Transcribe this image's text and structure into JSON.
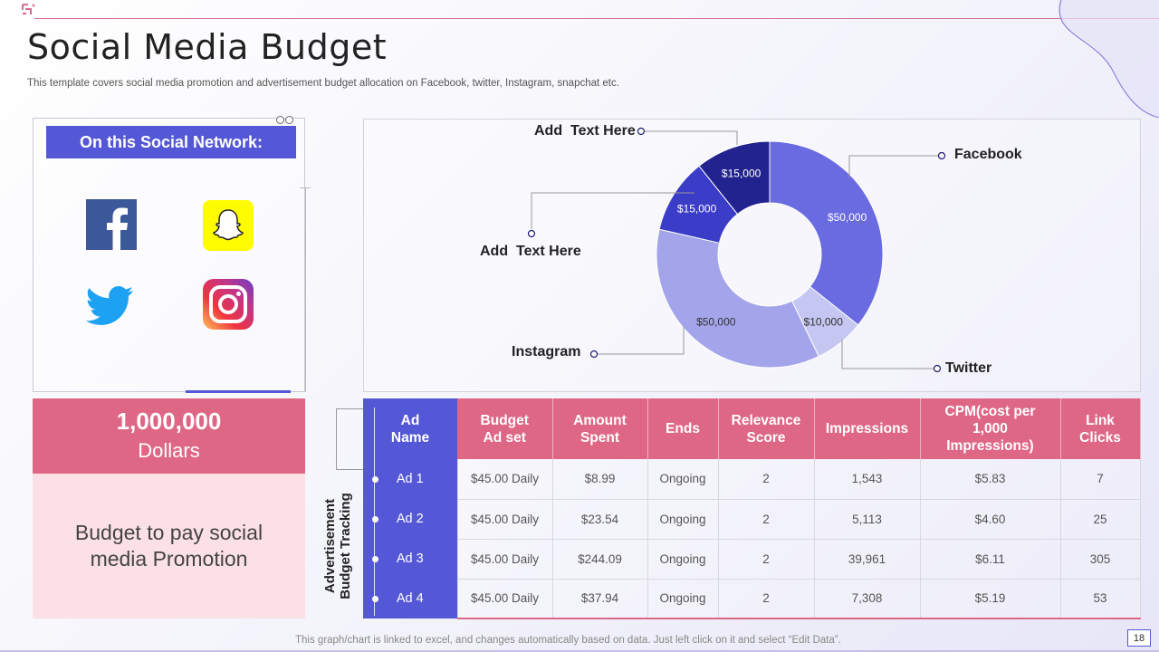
{
  "slide": {
    "title": "Social Media Budget",
    "subtitle": "This template covers social media promotion and advertisement budget allocation on Facebook, twitter, Instagram, snapchat etc.",
    "footer_note": "This graph/chart is linked to excel,  and changes automatically based on data. Just left click on it and select “Edit Data”.",
    "page_number": "18"
  },
  "network": {
    "header": "On this Social Network:",
    "icons": [
      "facebook-icon",
      "snapchat-icon",
      "twitter-icon",
      "instagram-icon"
    ]
  },
  "budget": {
    "amount": "1,000,000",
    "unit": "Dollars",
    "description": "Budget to pay social media Promotion"
  },
  "colors": {
    "accent_blue": "#5558d6",
    "accent_pink": "#df6786",
    "light_pink": "#fbe0e5"
  },
  "chart_data": {
    "type": "pie",
    "donut": true,
    "slices": [
      {
        "label": "Facebook",
        "value": 50000,
        "value_label": "$50,000",
        "color": "#6a6be0"
      },
      {
        "label": "Twitter",
        "value": 10000,
        "value_label": "$10,000",
        "color": "#c5c6f2"
      },
      {
        "label": "Instagram",
        "value": 50000,
        "value_label": "$50,000",
        "color": "#a3a4ea"
      },
      {
        "label": "Add  Text Here",
        "value": 15000,
        "value_label": "$15,000",
        "color": "#3b3cc8"
      },
      {
        "label": "Add  Text Here",
        "value": 15000,
        "value_label": "$15,000",
        "color": "#23238f"
      }
    ]
  },
  "table": {
    "side_label_line1": "Advertisement",
    "side_label_line2": "Budget Tracking",
    "headers": [
      "Ad\nName",
      "Budget\nAd set",
      "Amount\nSpent",
      "Ends",
      "Relevance\nScore",
      "Impressions",
      "CPM(cost per\n1,000\nImpressions)",
      "Link\nClicks"
    ],
    "rows": [
      [
        "Ad 1",
        "$45.00 Daily",
        "$8.99",
        "Ongoing",
        "2",
        "1,543",
        "$5.83",
        "7"
      ],
      [
        "Ad 2",
        "$45.00 Daily",
        "$23.54",
        "Ongoing",
        "2",
        "5,113",
        "$4.60",
        "25"
      ],
      [
        "Ad 3",
        "$45.00 Daily",
        "$244.09",
        "Ongoing",
        "2",
        "39,961",
        "$6.11",
        "305"
      ],
      [
        "Ad 4",
        "$45.00 Daily",
        "$37.94",
        "Ongoing",
        "2",
        "7,308",
        "$5.19",
        "53"
      ]
    ]
  }
}
